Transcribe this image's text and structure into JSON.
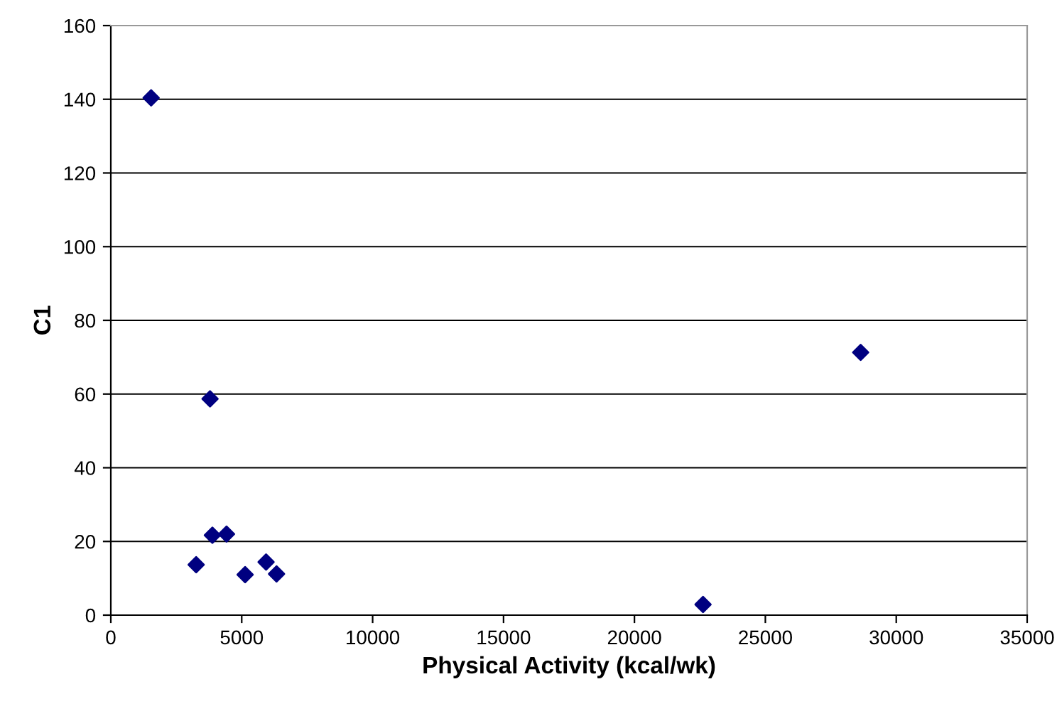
{
  "chart_data": {
    "type": "scatter",
    "xlabel": "Physical Activity (kcal/wk)",
    "ylabel": "C1",
    "series": [
      {
        "color": "#000080",
        "x": [
          1540,
          3790,
          3880,
          4420,
          3260,
          5130,
          5930,
          6330,
          22620,
          28640
        ],
        "values": [
          140.4,
          58.7,
          21.7,
          22.0,
          13.7,
          11.0,
          14.4,
          11.2,
          2.9,
          71.3
        ]
      }
    ],
    "xlim": [
      0,
      35000
    ],
    "xticks": [
      0,
      5000,
      10000,
      15000,
      20000,
      25000,
      30000,
      35000
    ],
    "ylim": [
      0,
      160
    ],
    "yticks": [
      0,
      20,
      40,
      60,
      80,
      100,
      120,
      140,
      160
    ],
    "grid": "y",
    "marker": "diamond",
    "legend": false
  }
}
